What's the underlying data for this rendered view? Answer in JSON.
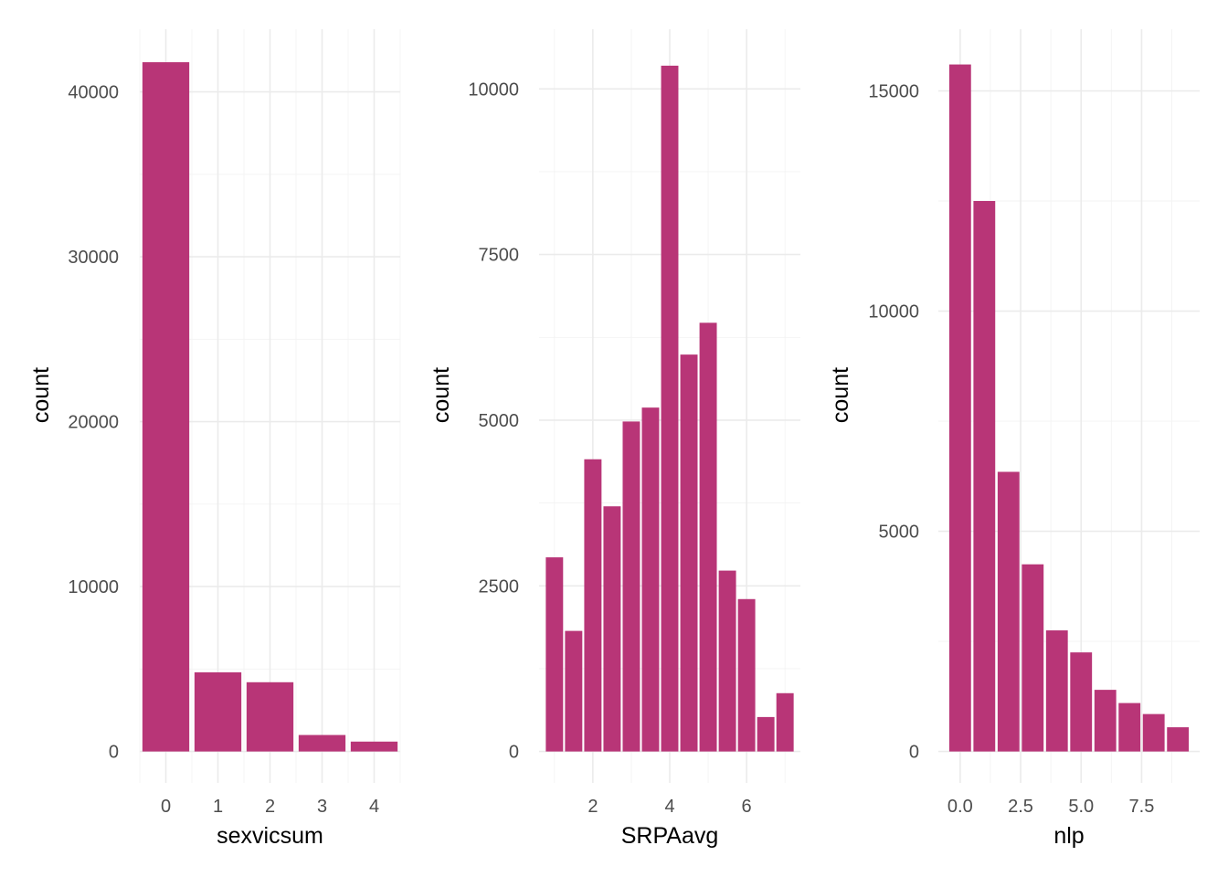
{
  "chart_data": [
    {
      "type": "bar",
      "title": "",
      "xlabel": "sexvicsum",
      "ylabel": "count",
      "categories": [
        "0",
        "1",
        "2",
        "3",
        "4"
      ],
      "x": [
        0,
        1,
        2,
        3,
        4
      ],
      "values": [
        41800,
        4800,
        4200,
        1000,
        600
      ],
      "bar_width": 0.9,
      "xlim": [
        -0.5,
        4.5
      ],
      "ylim": [
        0,
        43800
      ],
      "xticks": [
        0,
        1,
        2,
        3,
        4
      ],
      "xtick_labels": [
        "0",
        "1",
        "2",
        "3",
        "4"
      ],
      "yticks": [
        0,
        10000,
        20000,
        30000,
        40000
      ],
      "ytick_labels": [
        "0",
        "10000",
        "20000",
        "30000",
        "40000"
      ],
      "color": "#b83577",
      "grid": true,
      "legend": "none"
    },
    {
      "type": "bar",
      "title": "",
      "xlabel": "SRPAavg",
      "ylabel": "count",
      "x": [
        1.0,
        1.5,
        2.0,
        2.5,
        3.0,
        3.5,
        4.0,
        4.5,
        5.0,
        5.5,
        6.0,
        6.5,
        7.0
      ],
      "values": [
        2930,
        1820,
        4410,
        3700,
        4980,
        5190,
        10350,
        5990,
        6470,
        2730,
        2300,
        520,
        880
      ],
      "bar_width": 0.45,
      "xlim": [
        0.6,
        7.4
      ],
      "ylim": [
        0,
        10900
      ],
      "xticks": [
        2,
        4,
        6
      ],
      "xtick_labels": [
        "2",
        "4",
        "6"
      ],
      "yticks": [
        0,
        2500,
        5000,
        7500,
        10000
      ],
      "ytick_labels": [
        "0",
        "2500",
        "5000",
        "7500",
        "10000"
      ],
      "color": "#b83577",
      "grid": true,
      "legend": "none"
    },
    {
      "type": "bar",
      "title": "",
      "xlabel": "nlp",
      "ylabel": "count",
      "x": [
        0,
        1,
        2,
        3,
        4,
        5,
        6,
        7,
        8,
        9
      ],
      "values": [
        15600,
        12500,
        6350,
        4250,
        2750,
        2250,
        1400,
        1100,
        850,
        550
      ],
      "bar_width": 0.9,
      "xlim": [
        -0.9,
        9.9
      ],
      "ylim": [
        0,
        16400
      ],
      "xticks": [
        0,
        2.5,
        5,
        7.5
      ],
      "xtick_labels": [
        "0.0",
        "2.5",
        "5.0",
        "7.5"
      ],
      "yticks": [
        0,
        5000,
        10000,
        15000
      ],
      "ytick_labels": [
        "0",
        "5000",
        "10000",
        "15000"
      ],
      "color": "#b83577",
      "grid": true,
      "legend": "none"
    }
  ]
}
